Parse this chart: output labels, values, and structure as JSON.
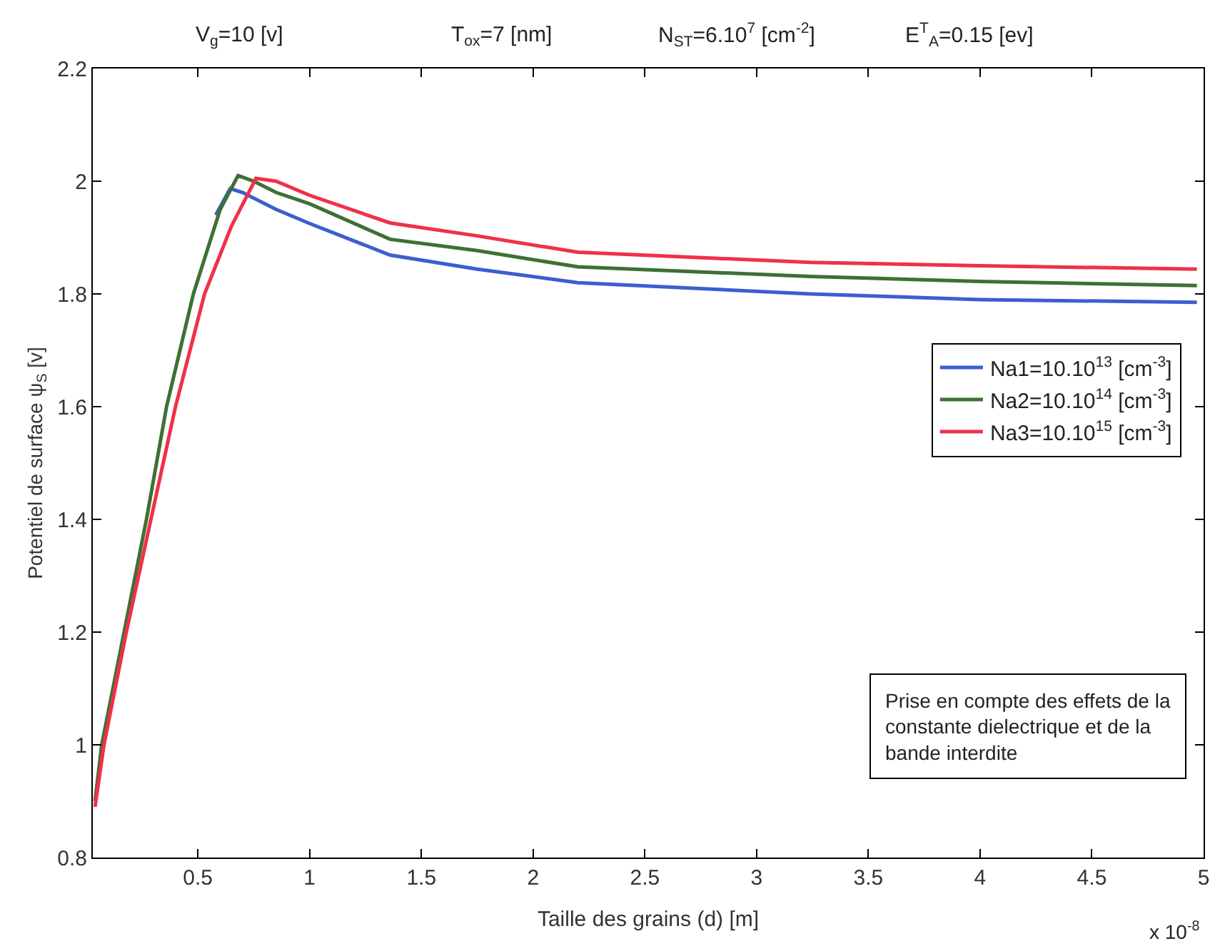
{
  "chart_data": {
    "type": "line",
    "xlabel": "Taille des grains (d) [m]",
    "ylabel": "Potentiel de surface ψ$_{S}$ [v]",
    "annotations": [
      "V$_{g}$=10 [v]",
      "T$_{ox}$=7 [nm]",
      "N$_{ST}$=6.10$^{7}$ [cm$^{-2}$]",
      "E$^{T}$$_{A}$=0.15 [ev]",
      "x 10$^{-8}$",
      "Prise en compte des effets de la\nconstante dielectrique et de la\nbande interdite"
    ],
    "series": [
      {
        "name": "Na1=10.10$^{13}$ [cm$^{-3}$]",
        "color": "#3b5fd0",
        "x": [
          0.58,
          0.645,
          0.7,
          0.85,
          1,
          1.36,
          1.75,
          2.2,
          3.24,
          4,
          4.97
        ],
        "values": [
          1.94,
          1.987,
          1.98,
          1.95,
          1.925,
          1.869,
          1.844,
          1.82,
          1.8,
          1.79,
          1.785
        ]
      },
      {
        "name": "Na2=10.10$^{14}$ [cm$^{-3}$]",
        "color": "#3e7034",
        "x": [
          0.04,
          0.07,
          0.17,
          0.27,
          0.36,
          0.48,
          0.6,
          0.68,
          0.75,
          0.85,
          1,
          1.36,
          1.75,
          2.2,
          3.24,
          4,
          4.97
        ],
        "values": [
          0.9,
          1.0,
          1.2,
          1.4,
          1.6,
          1.8,
          1.95,
          2.01,
          2.0,
          1.98,
          1.96,
          1.897,
          1.877,
          1.848,
          1.831,
          1.822,
          1.815
        ]
      },
      {
        "name": "Na3=10.10$^{15}$ [cm$^{-3}$]",
        "color": "#f0304a",
        "x": [
          0.04,
          0.08,
          0.18,
          0.29,
          0.4,
          0.53,
          0.65,
          0.76,
          0.85,
          1,
          1.36,
          1.75,
          2.2,
          3.24,
          4,
          4.97
        ],
        "values": [
          0.89,
          1.0,
          1.2,
          1.4,
          1.6,
          1.8,
          1.92,
          2.005,
          2.0,
          1.975,
          1.926,
          1.903,
          1.874,
          1.856,
          1.85,
          1.844
        ]
      }
    ],
    "xlim": [
      0.03,
      5
    ],
    "xticks": [
      0.5,
      1,
      1.5,
      2,
      2.5,
      3,
      3.5,
      4,
      4.5,
      5
    ],
    "ylim": [
      0.8,
      2.2
    ],
    "yticks": [
      0.8,
      1,
      1.2,
      1.4,
      1.6,
      1.8,
      2,
      2.2
    ],
    "grid": false,
    "legend": "right",
    "marker": "none",
    "line_style": "solid"
  }
}
